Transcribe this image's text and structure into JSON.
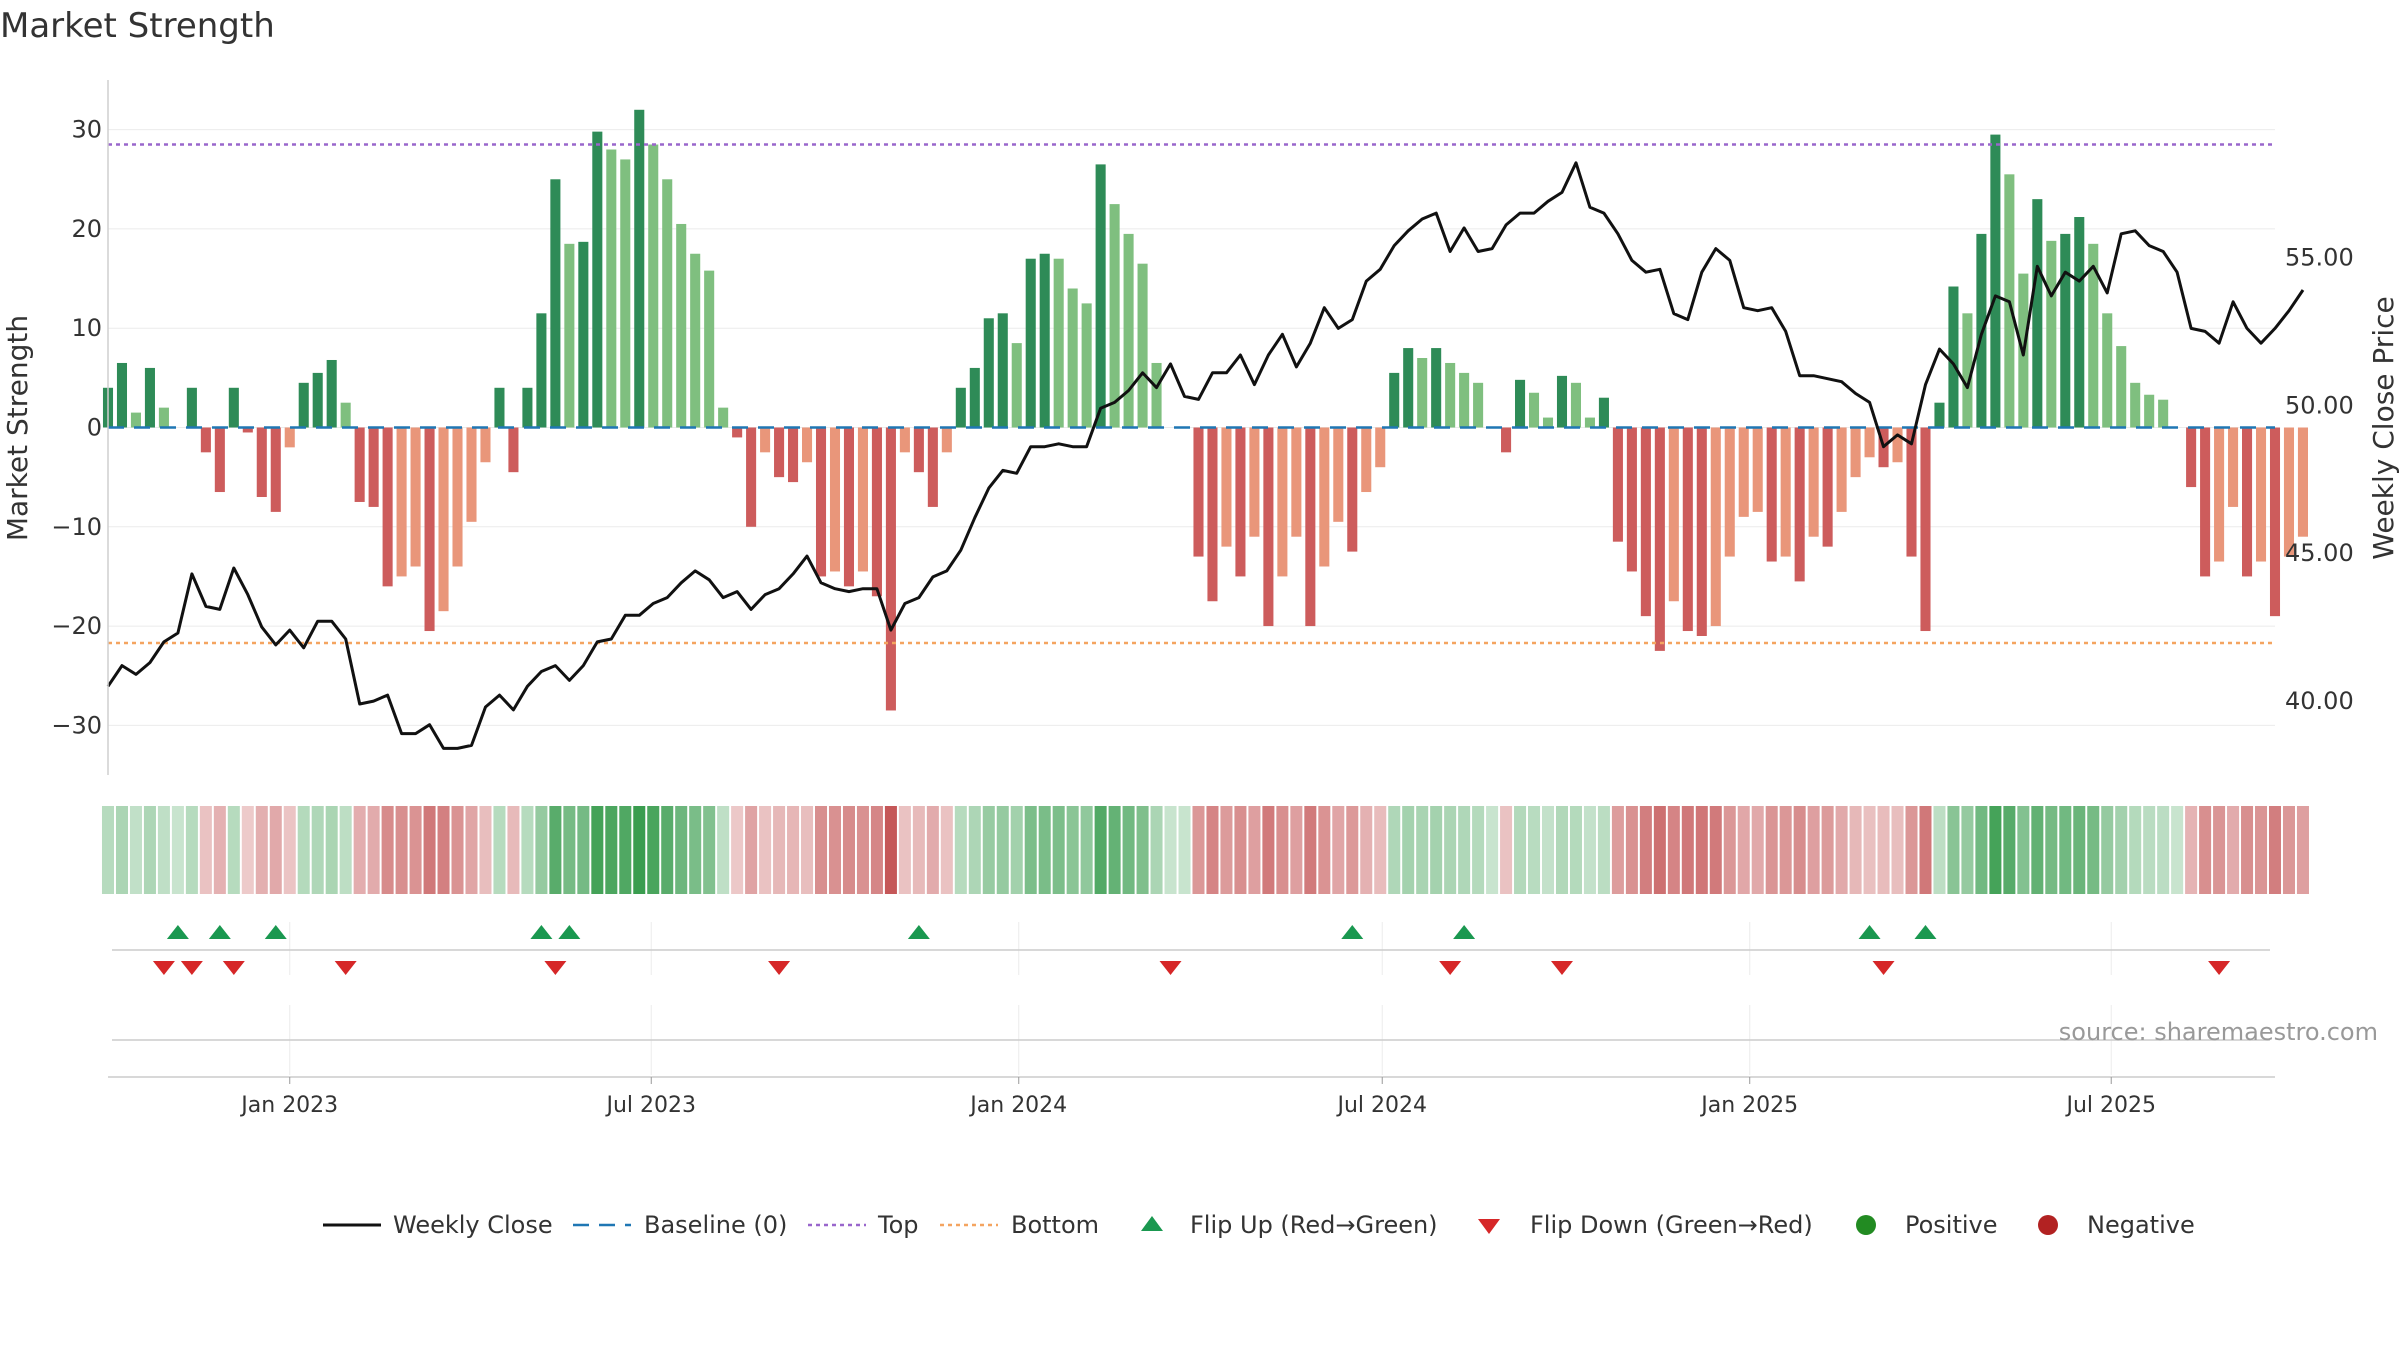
{
  "chart_data": {
    "type": "bar",
    "title": "Market Strength",
    "ylabel_left": "Market Strength",
    "ylabel_right": "Weekly Close Price",
    "ylim_left": [
      -35,
      35
    ],
    "ylim_right": [
      37.5,
      61.0
    ],
    "yticks_left": [
      30,
      20,
      10,
      0,
      -10,
      -20,
      -30
    ],
    "yticks_left_labels": [
      "30",
      "20",
      "10",
      "0",
      "−10",
      "−20",
      "−30"
    ],
    "yticks_right": [
      55,
      50,
      45,
      40
    ],
    "yticks_right_labels": [
      "55.00",
      "50.00",
      "45.00",
      "40.00"
    ],
    "x_start": "2022-10-02",
    "x_end": "2025-09-21",
    "xticks": [
      "2023-01-01",
      "2023-07-01",
      "2024-01-01",
      "2024-07-01",
      "2025-01-01",
      "2025-07-01"
    ],
    "xtick_labels": [
      "Jan 2023",
      "Jul 2023",
      "Jan 2024",
      "Jul 2024",
      "Jan 2025",
      "Jul 2025"
    ],
    "first_week": "2022-10-02",
    "strength": [
      4,
      6.5,
      1.5,
      6,
      2,
      0,
      4,
      -2.5,
      -6.5,
      4,
      -0.5,
      -7,
      -8.5,
      -2,
      4.5,
      5.5,
      6.8,
      2.5,
      -7.5,
      -8,
      -16,
      -15,
      -14,
      -20.5,
      -18.5,
      -14,
      -9.5,
      -3.5,
      4,
      -4.5,
      4,
      11.5,
      25,
      18.5,
      18.7,
      29.8,
      28,
      27,
      32,
      28.5,
      25,
      20.5,
      17.5,
      15.8,
      2,
      -1,
      -10,
      -2.5,
      -5,
      -5.5,
      -3.5,
      -15,
      -14.5,
      -16,
      -14.5,
      -17,
      -28.5,
      -2.5,
      -4.5,
      -8,
      -2.5,
      4,
      6,
      11,
      11.5,
      8.5,
      17,
      17.5,
      17,
      14,
      12.5,
      26.5,
      22.5,
      19.5,
      16.5,
      6.5,
      0,
      0,
      -13,
      -17.5,
      -12,
      -15,
      -11,
      -20,
      -15,
      -11,
      -20,
      -14,
      -9.5,
      -12.5,
      -6.5,
      -4,
      5.5,
      8,
      7,
      8,
      6.5,
      5.5,
      4.5,
      0,
      -2.5,
      4.8,
      3.5,
      1,
      5.2,
      4.5,
      1,
      3,
      -11.5,
      -14.5,
      -19,
      -22.5,
      -17.5,
      -20.5,
      -21,
      -20,
      -13,
      -9,
      -8.5,
      -13.5,
      -13,
      -15.5,
      -11,
      -12,
      -8.5,
      -5,
      -3,
      -4,
      -3.5,
      -13,
      -20.5,
      2.5,
      14.2,
      11.5,
      19.5,
      29.5,
      25.5,
      15.5,
      23,
      18.8,
      19.5,
      21.2,
      18.5,
      11.5,
      8.2,
      4.5,
      3.3,
      2.8,
      0,
      -6,
      -15,
      -13.5,
      -8,
      -15,
      -13.5,
      -19,
      -13,
      -11
    ],
    "top_line": 28.5,
    "bottom_line": -21.7,
    "baseline": 0,
    "weekly_close": [
      40.5,
      41.2,
      40.9,
      41.3,
      42,
      42.3,
      44.3,
      43.2,
      43.1,
      44.5,
      43.6,
      42.5,
      41.9,
      42.4,
      41.8,
      42.7,
      42.7,
      42.1,
      39.9,
      40,
      40.2,
      38.9,
      38.9,
      39.2,
      38.4,
      38.4,
      38.5,
      39.8,
      40.2,
      39.7,
      40.5,
      41,
      41.2,
      40.7,
      41.2,
      42,
      42.1,
      42.9,
      42.9,
      43.3,
      43.5,
      44,
      44.4,
      44.1,
      43.5,
      43.7,
      43.1,
      43.6,
      43.8,
      44.3,
      44.9,
      44,
      43.8,
      43.7,
      43.8,
      43.8,
      42.4,
      43.3,
      43.5,
      44.2,
      44.4,
      45.1,
      46.2,
      47.2,
      47.8,
      47.7,
      48.6,
      48.6,
      48.7,
      48.6,
      48.6,
      49.9,
      50.1,
      50.5,
      51.1,
      50.6,
      51.4,
      50.3,
      50.2,
      51.1,
      51.1,
      51.7,
      50.7,
      51.7,
      52.4,
      51.3,
      52.1,
      53.3,
      52.6,
      52.9,
      54.2,
      54.6,
      55.4,
      55.9,
      56.3,
      56.5,
      55.2,
      56,
      55.2,
      55.3,
      56.1,
      56.5,
      56.5,
      56.9,
      57.2,
      58.2,
      56.7,
      56.5,
      55.8,
      54.9,
      54.5,
      54.6,
      53.1,
      52.9,
      54.5,
      55.3,
      54.9,
      53.3,
      53.2,
      53.3,
      52.5,
      51,
      51,
      50.9,
      50.8,
      50.4,
      50.1,
      48.6,
      49,
      48.7,
      50.7,
      51.9,
      51.4,
      50.6,
      52.4,
      53.7,
      53.5,
      51.7,
      54.7,
      53.7,
      54.5,
      54.2,
      54.7,
      53.8,
      55.8,
      55.9,
      55.4,
      55.2,
      54.5,
      52.6,
      52.5,
      52.1,
      53.5,
      52.6,
      52.1,
      52.6,
      53.2,
      53.9
    ],
    "flip_up": [
      "2022-11-06",
      "2022-11-27",
      "2022-12-25",
      "2023-05-07",
      "2023-05-21",
      "2023-11-12",
      "2024-06-16",
      "2024-08-11",
      "2025-03-02",
      "2025-03-30"
    ],
    "flip_down": [
      "2022-10-30",
      "2022-11-13",
      "2022-12-04",
      "2023-01-29",
      "2023-05-14",
      "2023-09-03",
      "2024-03-17",
      "2024-08-04",
      "2024-09-29",
      "2025-03-09",
      "2025-08-24"
    ],
    "source": "source: sharemaestro.com",
    "legend": {
      "weekly_close": "Weekly Close",
      "baseline": "Baseline (0)",
      "top": "Top",
      "bottom": "Bottom",
      "flip_up": "Flip Up (Red→Green)",
      "flip_down": "Flip Down (Green→Red)",
      "positive": "Positive",
      "negative": "Negative"
    },
    "colors": {
      "pos_dark": "#2e8b57",
      "pos_light": "#7fbf7f",
      "neg_dark": "#cd5c5c",
      "neg_light": "#e9967a",
      "top": "#9966cc",
      "bottom": "#f4a460",
      "baseline": "#1f77b4",
      "close": "#111111",
      "flip_up": "#1a9850",
      "flip_down": "#d62728",
      "positive": "#228b22",
      "negative": "#b22222"
    }
  }
}
